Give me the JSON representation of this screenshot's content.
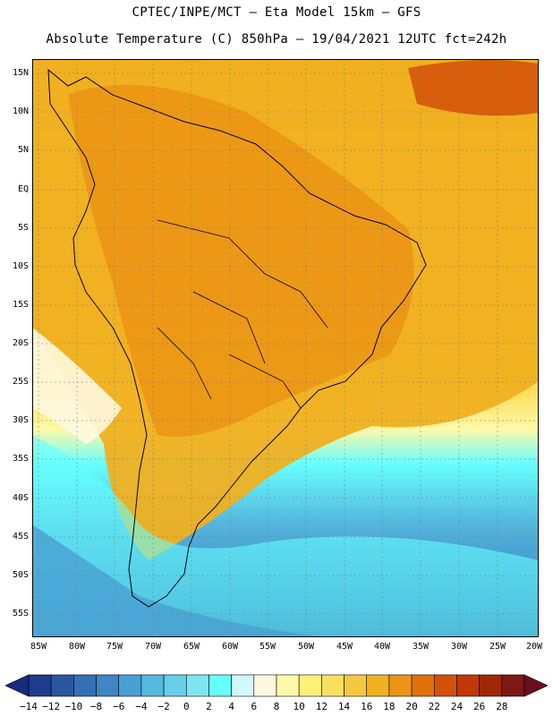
{
  "header": {
    "line1": "CPTEC/INPE/MCT –  Eta Model 15km – GFS",
    "line2": "Absolute Temperature (C) 850hPa – 19/04/2021 12UTC fct=242h"
  },
  "axes": {
    "lat_labels": [
      "15N",
      "10N",
      "5N",
      "EQ",
      "5S",
      "10S",
      "15S",
      "20S",
      "25S",
      "30S",
      "35S",
      "40S",
      "45S",
      "50S",
      "55S"
    ],
    "lon_labels": [
      "85W",
      "80W",
      "75W",
      "70W",
      "65W",
      "60W",
      "55W",
      "50W",
      "45W",
      "40W",
      "35W",
      "30W",
      "25W",
      "20W"
    ]
  },
  "colorbar": {
    "labels": [
      "-14",
      "-12",
      "-10",
      "-8",
      "-6",
      "-4",
      "-2",
      "0",
      "2",
      "4",
      "6",
      "8",
      "10",
      "12",
      "14",
      "16",
      "18",
      "20",
      "22",
      "24",
      "26",
      "28"
    ],
    "colors": [
      "#1e3c8c",
      "#2a56a0",
      "#3470b4",
      "#3e86c4",
      "#48a0d2",
      "#55b8de",
      "#66cfe8",
      "#7de6f2",
      "#66ffff",
      "#d0f8ff",
      "#fff8e0",
      "#fff8a8",
      "#fff07a",
      "#fbe060",
      "#f5c842",
      "#f0b020",
      "#eb9414",
      "#e2700a",
      "#d45008",
      "#c03806",
      "#a02808",
      "#7a1a10"
    ]
  }
}
